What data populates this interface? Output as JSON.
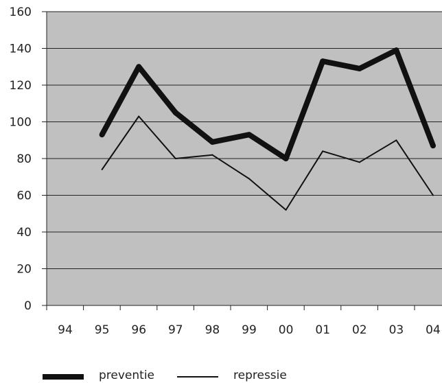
{
  "chart_data": {
    "type": "line",
    "title": "",
    "xlabel": "",
    "ylabel": "",
    "categories": [
      "94",
      "95",
      "96",
      "97",
      "98",
      "99",
      "00",
      "01",
      "02",
      "03",
      "04"
    ],
    "ylim": [
      0,
      160
    ],
    "yticks": [
      0,
      20,
      40,
      60,
      80,
      100,
      120,
      140,
      160
    ],
    "grid": true,
    "legend_position": "bottom",
    "plot_background": "#c0c0c0",
    "series": [
      {
        "name": "preventie",
        "values": [
          null,
          93,
          130,
          105,
          89,
          93,
          80,
          133,
          129,
          139,
          87
        ],
        "color": "#111111",
        "style": "thick"
      },
      {
        "name": "repressie",
        "values": [
          null,
          74,
          103,
          80,
          82,
          69,
          52,
          84,
          78,
          90,
          60
        ],
        "color": "#111111",
        "style": "thin"
      }
    ]
  }
}
